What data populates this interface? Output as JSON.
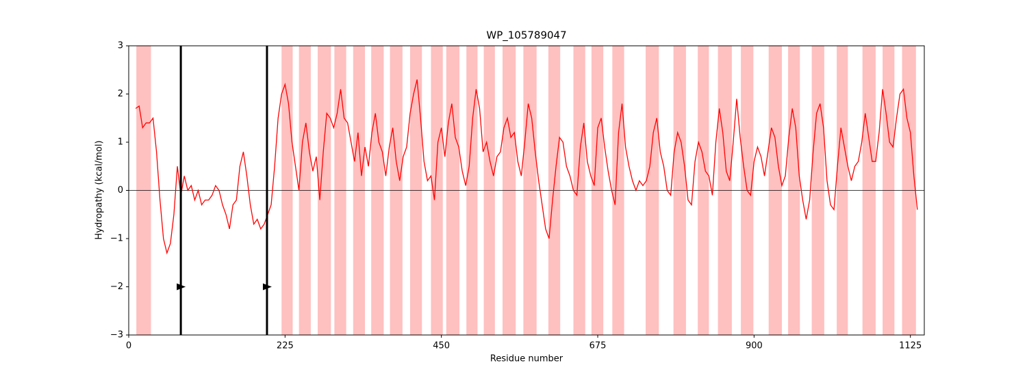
{
  "chart_data": {
    "type": "line",
    "title": "WP_105789047",
    "xlabel": "Residue number",
    "ylabel": "Hydropathy (kcal/mol)",
    "xlim": [
      0,
      1145
    ],
    "ylim": [
      -3,
      3
    ],
    "xticks": [
      0,
      225,
      450,
      675,
      900,
      1125
    ],
    "yticks": [
      {
        "value": -3,
        "label": "−3"
      },
      {
        "value": -2,
        "label": "−2"
      },
      {
        "value": -1,
        "label": "−1"
      },
      0,
      1,
      2,
      3
    ],
    "color": "#ff0000",
    "region_color": "#ffc0c0",
    "hline": 0,
    "vlines": [
      75,
      199
    ],
    "markers": [
      {
        "x": 75,
        "y": -2
      },
      {
        "x": 199,
        "y": -2
      }
    ],
    "regions": [
      [
        11,
        32
      ],
      [
        220,
        236
      ],
      [
        245,
        262
      ],
      [
        272,
        291
      ],
      [
        296,
        313
      ],
      [
        323,
        340
      ],
      [
        349,
        367
      ],
      [
        376,
        394
      ],
      [
        405,
        422
      ],
      [
        435,
        452
      ],
      [
        457,
        476
      ],
      [
        486,
        502
      ],
      [
        511,
        527
      ],
      [
        538,
        557
      ],
      [
        568,
        587
      ],
      [
        604,
        621
      ],
      [
        640,
        657
      ],
      [
        666,
        683
      ],
      [
        696,
        713
      ],
      [
        744,
        763
      ],
      [
        784,
        802
      ],
      [
        819,
        835
      ],
      [
        848,
        868
      ],
      [
        881,
        899
      ],
      [
        921,
        940
      ],
      [
        949,
        966
      ],
      [
        983,
        1001
      ],
      [
        1019,
        1035
      ],
      [
        1056,
        1075
      ],
      [
        1085,
        1102
      ],
      [
        1113,
        1133
      ]
    ],
    "x": [
      10,
      15,
      20,
      25,
      30,
      35,
      40,
      45,
      50,
      55,
      60,
      65,
      70,
      75,
      80,
      85,
      90,
      95,
      100,
      105,
      110,
      115,
      120,
      125,
      130,
      135,
      140,
      145,
      150,
      155,
      160,
      165,
      170,
      175,
      180,
      185,
      190,
      195,
      200,
      205,
      210,
      215,
      220,
      225,
      230,
      235,
      240,
      245,
      250,
      255,
      260,
      265,
      270,
      275,
      280,
      285,
      290,
      295,
      300,
      305,
      310,
      315,
      320,
      325,
      330,
      335,
      340,
      345,
      350,
      355,
      360,
      365,
      370,
      375,
      380,
      385,
      390,
      395,
      400,
      405,
      410,
      415,
      420,
      425,
      430,
      435,
      440,
      445,
      450,
      455,
      460,
      465,
      470,
      475,
      480,
      485,
      490,
      495,
      500,
      505,
      510,
      515,
      520,
      525,
      530,
      535,
      540,
      545,
      550,
      555,
      560,
      565,
      570,
      575,
      580,
      585,
      590,
      595,
      600,
      605,
      610,
      615,
      620,
      625,
      630,
      635,
      640,
      645,
      650,
      655,
      660,
      665,
      670,
      675,
      680,
      685,
      690,
      695,
      700,
      705,
      710,
      715,
      720,
      725,
      730,
      735,
      740,
      745,
      750,
      755,
      760,
      765,
      770,
      775,
      780,
      785,
      790,
      795,
      800,
      805,
      810,
      815,
      820,
      825,
      830,
      835,
      840,
      845,
      850,
      855,
      860,
      865,
      870,
      875,
      880,
      885,
      890,
      895,
      900,
      905,
      910,
      915,
      920,
      925,
      930,
      935,
      940,
      945,
      950,
      955,
      960,
      965,
      970,
      975,
      980,
      985,
      990,
      995,
      1000,
      1005,
      1010,
      1015,
      1020,
      1025,
      1030,
      1035,
      1040,
      1045,
      1050,
      1055,
      1060,
      1065,
      1070,
      1075,
      1080,
      1085,
      1090,
      1095,
      1100,
      1105,
      1110,
      1115,
      1120,
      1125,
      1130,
      1135
    ],
    "values": [
      1.7,
      1.75,
      1.3,
      1.4,
      1.4,
      1.5,
      0.8,
      -0.2,
      -1.0,
      -1.3,
      -1.1,
      -0.5,
      0.5,
      -0.1,
      0.3,
      0.0,
      0.1,
      -0.2,
      0.0,
      -0.3,
      -0.2,
      -0.2,
      -0.1,
      0.1,
      0.0,
      -0.3,
      -0.5,
      -0.8,
      -0.3,
      -0.2,
      0.5,
      0.8,
      0.3,
      -0.3,
      -0.7,
      -0.6,
      -0.8,
      -0.7,
      -0.5,
      -0.3,
      0.5,
      1.5,
      2.0,
      2.2,
      1.8,
      1.0,
      0.5,
      0.0,
      1.0,
      1.4,
      0.8,
      0.4,
      0.7,
      -0.2,
      0.8,
      1.6,
      1.5,
      1.3,
      1.6,
      2.1,
      1.5,
      1.4,
      1.0,
      0.6,
      1.2,
      0.3,
      0.9,
      0.5,
      1.2,
      1.6,
      1.0,
      0.8,
      0.3,
      0.9,
      1.3,
      0.6,
      0.2,
      0.7,
      0.9,
      1.6,
      2.0,
      2.3,
      1.5,
      0.6,
      0.2,
      0.3,
      -0.2,
      1.0,
      1.3,
      0.7,
      1.4,
      1.8,
      1.1,
      0.9,
      0.4,
      0.1,
      0.5,
      1.5,
      2.1,
      1.7,
      0.8,
      1.0,
      0.6,
      0.3,
      0.7,
      0.8,
      1.3,
      1.5,
      1.1,
      1.2,
      0.6,
      0.3,
      1.0,
      1.8,
      1.5,
      0.8,
      0.2,
      -0.3,
      -0.8,
      -1.0,
      -0.2,
      0.5,
      1.1,
      1.0,
      0.5,
      0.3,
      0.0,
      -0.1,
      0.9,
      1.4,
      0.6,
      0.3,
      0.1,
      1.3,
      1.5,
      0.9,
      0.4,
      0.0,
      -0.3,
      1.2,
      1.8,
      0.9,
      0.5,
      0.2,
      0.0,
      0.2,
      0.1,
      0.2,
      0.5,
      1.2,
      1.5,
      0.8,
      0.5,
      0.0,
      -0.1,
      0.8,
      1.2,
      1.0,
      0.5,
      -0.2,
      -0.3,
      0.6,
      1.0,
      0.8,
      0.4,
      0.3,
      -0.1,
      1.0,
      1.7,
      1.2,
      0.4,
      0.2,
      1.0,
      1.9,
      1.1,
      0.5,
      0.0,
      -0.1,
      0.6,
      0.9,
      0.7,
      0.3,
      0.8,
      1.3,
      1.1,
      0.5,
      0.1,
      0.3,
      1.1,
      1.7,
      1.3,
      0.3,
      -0.2,
      -0.6,
      -0.2,
      0.8,
      1.6,
      1.8,
      1.3,
      0.2,
      -0.3,
      -0.4,
      0.5,
      1.3,
      0.9,
      0.5,
      0.2,
      0.5,
      0.6,
      1.0,
      1.6,
      1.1,
      0.6,
      0.6,
      1.2,
      2.1,
      1.6,
      1.0,
      0.9,
      1.5,
      2.0,
      2.1,
      1.5,
      1.2,
      0.3,
      -0.4
    ]
  }
}
